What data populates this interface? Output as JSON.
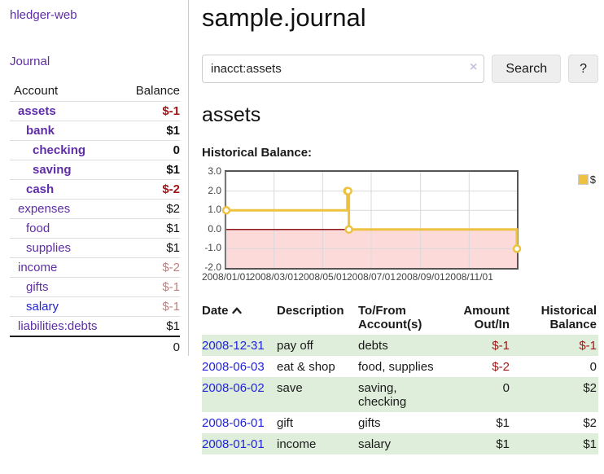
{
  "sidebar": {
    "brand": "hledger-web",
    "journal_link": "Journal",
    "accounts_table": {
      "header_account": "Account",
      "header_balance": "Balance",
      "rows": [
        {
          "label": "assets",
          "depth": 1,
          "bold": true,
          "balance": "$-1"
        },
        {
          "label": "bank",
          "depth": 2,
          "bold": true,
          "balance": "$1"
        },
        {
          "label": "checking",
          "depth": 3,
          "bold": true,
          "balance": "0"
        },
        {
          "label": "saving",
          "depth": 3,
          "bold": true,
          "balance": "$1"
        },
        {
          "label": "cash",
          "depth": 2,
          "bold": true,
          "balance": "$-2"
        },
        {
          "label": "expenses",
          "depth": 1,
          "bold": false,
          "balance": "$2"
        },
        {
          "label": "food",
          "depth": 2,
          "bold": false,
          "balance": "$1"
        },
        {
          "label": "supplies",
          "depth": 2,
          "bold": false,
          "balance": "$1"
        },
        {
          "label": "income",
          "depth": 1,
          "bold": false,
          "balance": "$-2"
        },
        {
          "label": "gifts",
          "depth": 2,
          "bold": false,
          "balance": "$-1"
        },
        {
          "label": "salary",
          "depth": 2,
          "bold": false,
          "balance": "$-1",
          "link_color": "blue"
        },
        {
          "label": "liabilities:debts",
          "depth": 1,
          "bold": false,
          "balance": "$1"
        }
      ],
      "total": "0"
    }
  },
  "header": {
    "title": "sample.journal"
  },
  "search": {
    "query": "inacct:assets",
    "clear_icon": "×",
    "button_label": "Search",
    "help_label": "?"
  },
  "account_page": {
    "title": "assets",
    "chart_label": "Historical Balance:"
  },
  "chart_data": {
    "type": "line",
    "step": "after",
    "title": "Historical Balance",
    "x_range": [
      "2008-01-01",
      "2008-12-31"
    ],
    "ylim": [
      -2,
      3
    ],
    "x_ticks": [
      "2008/01/01",
      "2008/03/01",
      "2008/05/01",
      "2008/07/01",
      "2008/09/01",
      "2008/11/01"
    ],
    "y_ticks": [
      {
        "value": 3,
        "label": "3.0"
      },
      {
        "value": 2,
        "label": "2.0"
      },
      {
        "value": 1,
        "label": "1.0"
      },
      {
        "value": 0,
        "label": "0.0"
      },
      {
        "value": -1,
        "label": "-1.0"
      },
      {
        "value": -2,
        "label": "-2.0"
      }
    ],
    "series": [
      {
        "name": "$",
        "color": "#edc240",
        "points": [
          {
            "date": "2008-01-01",
            "value": 1
          },
          {
            "date": "2008-06-01",
            "value": 2
          },
          {
            "date": "2008-06-02",
            "value": 2
          },
          {
            "date": "2008-06-03",
            "value": 0
          },
          {
            "date": "2008-12-31",
            "value": -1
          }
        ]
      }
    ],
    "legend": {
      "position": "top-right",
      "label": "$"
    },
    "negative_region_color": "#fcdada",
    "zero_line_color": "#8c1a1a",
    "grid_color": "#d9d9d9",
    "border_color": "#555555",
    "grid": true
  },
  "register": {
    "headers": {
      "date": "Date",
      "description": "Description",
      "accounts": "To/From Account(s)",
      "amount": "Amount Out/In",
      "balance": "Historical Balance"
    },
    "rows": [
      {
        "date": "2008-12-31",
        "description": "pay off",
        "accounts": "debts",
        "amount": "$-1",
        "balance": "$-1"
      },
      {
        "date": "2008-06-03",
        "description": "eat & shop",
        "accounts": "food, supplies",
        "amount": "$-2",
        "balance": "0"
      },
      {
        "date": "2008-06-02",
        "description": "save",
        "accounts": "saving, checking",
        "amount": "0",
        "balance": "$2"
      },
      {
        "date": "2008-06-01",
        "description": "gift",
        "accounts": "gifts",
        "amount": "$1",
        "balance": "$2"
      },
      {
        "date": "2008-01-01",
        "description": "income",
        "accounts": "salary",
        "amount": "$1",
        "balance": "$1"
      }
    ]
  },
  "colors": {
    "link_purple": "#5f2da8",
    "link_blue": "#2222dd",
    "negative_strong": "#9e1616",
    "negative_soft": "#c08181",
    "row_shade_green": "#dfeeda",
    "series_gold": "#edc240",
    "chart_negative_region": "#fcdada",
    "chart_zero_line": "#8c1a1a"
  }
}
